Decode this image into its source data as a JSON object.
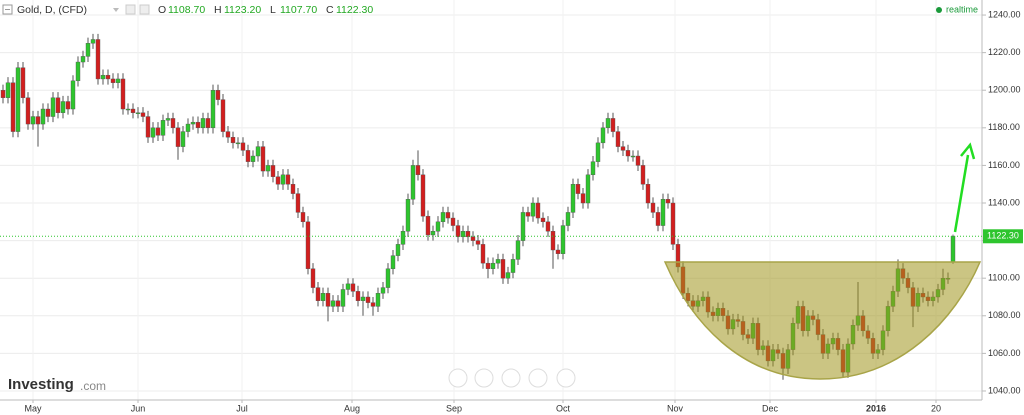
{
  "header": {
    "symbol": "Gold, D, (CFD)",
    "ohlc": [
      {
        "key": "O",
        "value": "1108.70"
      },
      {
        "key": "H",
        "value": "1123.20"
      },
      {
        "key": "L",
        "value": "1107.70"
      },
      {
        "key": "C",
        "value": "1122.30"
      }
    ],
    "status": "realtime"
  },
  "logo": {
    "name": "Investing",
    "suffix": ".com"
  },
  "chart_data": {
    "type": "candlestick",
    "open": [
      1200,
      1196,
      1204,
      1178,
      1212,
      1196,
      1182,
      1186,
      1182,
      1190,
      1186,
      1196,
      1188,
      1194,
      1190,
      1205,
      1215,
      1218,
      1225,
      1227,
      1206,
      1208,
      1206,
      1204,
      1206,
      1190,
      1190,
      1188,
      1188,
      1186,
      1175,
      1180,
      1176,
      1184,
      1185,
      1180,
      1170,
      1178,
      1182,
      1183,
      1180,
      1185,
      1180,
      1200,
      1195,
      1178,
      1175,
      1172,
      1172,
      1168,
      1162,
      1165,
      1170,
      1157,
      1160,
      1154,
      1150,
      1155,
      1150,
      1145,
      1135,
      1130,
      1105,
      1095,
      1088,
      1092,
      1085,
      1088,
      1085,
      1094,
      1097,
      1093,
      1088,
      1090,
      1087,
      1085,
      1092,
      1095,
      1105,
      1112,
      1118,
      1125,
      1142,
      1160,
      1155,
      1133,
      1123,
      1125,
      1130,
      1135,
      1132,
      1128,
      1122,
      1125,
      1122,
      1120,
      1118,
      1108,
      1105,
      1108,
      1110,
      1100,
      1103,
      1110,
      1120,
      1135,
      1133,
      1140,
      1132,
      1130,
      1125,
      1115,
      1113,
      1128,
      1135,
      1150,
      1145,
      1140,
      1155,
      1162,
      1172,
      1180,
      1185,
      1178,
      1170,
      1168,
      1165,
      1165,
      1160,
      1150,
      1140,
      1135,
      1128,
      1142,
      1140,
      1118,
      1106,
      1092,
      1088,
      1085,
      1088,
      1090,
      1082,
      1080,
      1084,
      1080,
      1073,
      1078,
      1077,
      1070,
      1068,
      1076,
      1062,
      1064,
      1056,
      1062,
      1060,
      1052,
      1062,
      1076,
      1085,
      1072,
      1080,
      1078,
      1070,
      1060,
      1065,
      1068,
      1062,
      1050,
      1065,
      1075,
      1080,
      1072,
      1068,
      1060,
      1062,
      1072,
      1085,
      1093,
      1105,
      1100,
      1095,
      1085,
      1092,
      1090,
      1088,
      1090,
      1094,
      1100,
      1108.7
    ],
    "high": [
      1203,
      1207,
      1207,
      1215,
      1215,
      1199,
      1189,
      1189,
      1193,
      1193,
      1199,
      1199,
      1197,
      1197,
      1208,
      1218,
      1221,
      1228,
      1230,
      1230,
      1211,
      1211,
      1209,
      1209,
      1209,
      1193,
      1193,
      1191,
      1191,
      1189,
      1183,
      1183,
      1187,
      1188,
      1188,
      1183,
      1181,
      1185,
      1186,
      1186,
      1188,
      1188,
      1203,
      1203,
      1198,
      1181,
      1178,
      1175,
      1175,
      1171,
      1168,
      1173,
      1173,
      1163,
      1163,
      1157,
      1158,
      1158,
      1153,
      1148,
      1138,
      1133,
      1108,
      1098,
      1095,
      1095,
      1091,
      1091,
      1097,
      1100,
      1100,
      1096,
      1093,
      1093,
      1090,
      1095,
      1098,
      1108,
      1115,
      1121,
      1128,
      1145,
      1163,
      1168,
      1158,
      1136,
      1128,
      1133,
      1138,
      1138,
      1135,
      1131,
      1128,
      1128,
      1125,
      1123,
      1121,
      1111,
      1111,
      1113,
      1113,
      1106,
      1113,
      1123,
      1138,
      1138,
      1143,
      1143,
      1135,
      1133,
      1128,
      1118,
      1131,
      1138,
      1153,
      1153,
      1148,
      1158,
      1165,
      1175,
      1183,
      1188,
      1188,
      1181,
      1173,
      1171,
      1168,
      1168,
      1163,
      1153,
      1143,
      1138,
      1145,
      1145,
      1143,
      1121,
      1109,
      1095,
      1091,
      1091,
      1093,
      1093,
      1085,
      1087,
      1087,
      1083,
      1081,
      1081,
      1080,
      1073,
      1079,
      1079,
      1067,
      1067,
      1065,
      1065,
      1063,
      1065,
      1079,
      1088,
      1088,
      1083,
      1083,
      1081,
      1073,
      1068,
      1071,
      1071,
      1065,
      1068,
      1078,
      1098,
      1083,
      1075,
      1071,
      1065,
      1075,
      1088,
      1096,
      1110,
      1108,
      1103,
      1098,
      1095,
      1095,
      1093,
      1093,
      1097,
      1105,
      1103,
      1123.2
    ],
    "low": [
      1193,
      1193,
      1175,
      1175,
      1193,
      1179,
      1179,
      1170,
      1179,
      1183,
      1183,
      1185,
      1185,
      1187,
      1187,
      1202,
      1212,
      1215,
      1222,
      1203,
      1203,
      1203,
      1201,
      1201,
      1187,
      1187,
      1185,
      1185,
      1183,
      1172,
      1172,
      1173,
      1173,
      1181,
      1177,
      1163,
      1167,
      1175,
      1179,
      1177,
      1177,
      1177,
      1177,
      1192,
      1175,
      1172,
      1169,
      1169,
      1165,
      1159,
      1159,
      1162,
      1154,
      1154,
      1151,
      1147,
      1147,
      1147,
      1142,
      1132,
      1127,
      1102,
      1092,
      1085,
      1085,
      1077,
      1082,
      1082,
      1082,
      1091,
      1090,
      1085,
      1080,
      1084,
      1080,
      1082,
      1089,
      1092,
      1102,
      1109,
      1115,
      1122,
      1139,
      1152,
      1130,
      1120,
      1120,
      1122,
      1127,
      1129,
      1125,
      1119,
      1119,
      1119,
      1117,
      1115,
      1105,
      1100,
      1102,
      1105,
      1097,
      1097,
      1100,
      1107,
      1117,
      1130,
      1130,
      1129,
      1127,
      1122,
      1105,
      1110,
      1110,
      1125,
      1132,
      1142,
      1137,
      1137,
      1152,
      1159,
      1169,
      1177,
      1175,
      1167,
      1165,
      1162,
      1162,
      1157,
      1147,
      1137,
      1132,
      1125,
      1125,
      1137,
      1115,
      1103,
      1089,
      1085,
      1082,
      1082,
      1085,
      1079,
      1077,
      1077,
      1077,
      1070,
      1070,
      1074,
      1067,
      1065,
      1065,
      1059,
      1059,
      1053,
      1053,
      1057,
      1046,
      1049,
      1059,
      1073,
      1069,
      1069,
      1075,
      1067,
      1057,
      1057,
      1062,
      1059,
      1047,
      1047,
      1062,
      1072,
      1069,
      1065,
      1057,
      1057,
      1059,
      1069,
      1082,
      1090,
      1097,
      1092,
      1074,
      1082,
      1087,
      1085,
      1085,
      1087,
      1091,
      1097,
      1107.7
    ],
    "close": [
      1196,
      1204,
      1178,
      1212,
      1196,
      1182,
      1186,
      1182,
      1190,
      1186,
      1196,
      1188,
      1194,
      1190,
      1205,
      1215,
      1218,
      1225,
      1227,
      1206,
      1208,
      1206,
      1204,
      1206,
      1190,
      1190,
      1188,
      1188,
      1186,
      1175,
      1180,
      1176,
      1184,
      1185,
      1180,
      1170,
      1178,
      1182,
      1183,
      1180,
      1185,
      1180,
      1200,
      1195,
      1178,
      1175,
      1172,
      1172,
      1168,
      1162,
      1165,
      1170,
      1157,
      1160,
      1154,
      1150,
      1155,
      1150,
      1145,
      1135,
      1130,
      1105,
      1095,
      1088,
      1092,
      1085,
      1088,
      1085,
      1094,
      1097,
      1093,
      1088,
      1090,
      1087,
      1085,
      1092,
      1095,
      1105,
      1112,
      1118,
      1125,
      1142,
      1160,
      1155,
      1133,
      1123,
      1125,
      1130,
      1135,
      1132,
      1128,
      1122,
      1125,
      1122,
      1120,
      1118,
      1108,
      1105,
      1108,
      1110,
      1100,
      1103,
      1110,
      1120,
      1135,
      1133,
      1140,
      1132,
      1130,
      1125,
      1115,
      1113,
      1128,
      1135,
      1150,
      1145,
      1140,
      1155,
      1162,
      1172,
      1180,
      1185,
      1178,
      1170,
      1168,
      1165,
      1165,
      1160,
      1150,
      1140,
      1135,
      1128,
      1142,
      1140,
      1118,
      1106,
      1092,
      1088,
      1085,
      1088,
      1090,
      1082,
      1080,
      1084,
      1080,
      1073,
      1078,
      1077,
      1070,
      1068,
      1076,
      1062,
      1064,
      1056,
      1062,
      1060,
      1052,
      1062,
      1076,
      1085,
      1072,
      1080,
      1078,
      1070,
      1060,
      1065,
      1068,
      1062,
      1050,
      1065,
      1075,
      1080,
      1072,
      1068,
      1060,
      1062,
      1072,
      1085,
      1093,
      1105,
      1100,
      1095,
      1085,
      1092,
      1090,
      1088,
      1090,
      1094,
      1100,
      1100,
      1122.3
    ],
    "up_color": "#2ec52e",
    "down_color": "#d21f1f",
    "ylim": [
      1035.2,
      1248
    ],
    "yticks": [
      {
        "value": 1040,
        "label": "1040.00"
      },
      {
        "value": 1060,
        "label": "1060.00"
      },
      {
        "value": 1080,
        "label": "1080.00"
      },
      {
        "value": 1100,
        "label": "1100.00"
      },
      {
        "value": 1120,
        "label": "1120.00"
      },
      {
        "value": 1140,
        "label": "1140.00"
      },
      {
        "value": 1160,
        "label": "1160.00"
      },
      {
        "value": 1180,
        "label": "1180.00"
      },
      {
        "value": 1200,
        "label": "1200.00"
      },
      {
        "value": 1220,
        "label": "1220.00"
      },
      {
        "value": 1240,
        "label": "1240.00"
      }
    ],
    "xlim": [
      -0.6,
      195.8
    ],
    "xticks": [
      {
        "value": 6,
        "label": "May"
      },
      {
        "value": 27,
        "label": "Jun"
      },
      {
        "value": 47.8,
        "label": "Jul"
      },
      {
        "value": 69.8,
        "label": "Aug"
      },
      {
        "value": 90.2,
        "label": "Sep"
      },
      {
        "value": 112,
        "label": "Oct"
      },
      {
        "value": 134.4,
        "label": "Nov"
      },
      {
        "value": 153.4,
        "label": "Dec"
      },
      {
        "value": 174.6,
        "label": "2016"
      },
      {
        "value": 186.6,
        "label": "20"
      }
    ],
    "last_price": {
      "value": 1122.3,
      "label": "1122.30"
    },
    "grid": true
  }
}
